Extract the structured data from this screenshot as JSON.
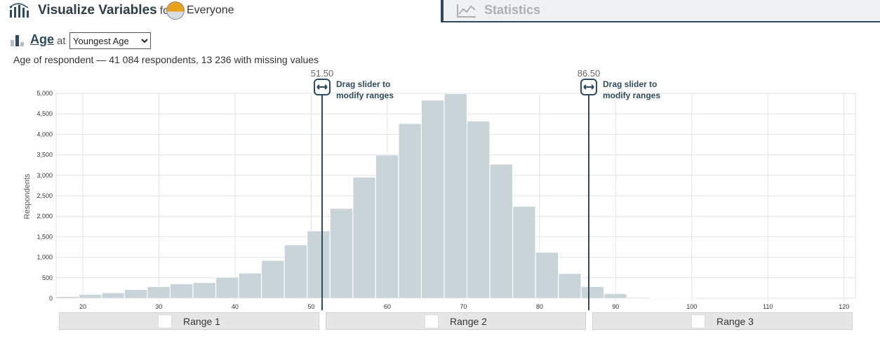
{
  "header": {
    "title": "Visualize Variables",
    "for_label": "for",
    "group": "Everyone"
  },
  "tabs": {
    "statistics": "Statistics"
  },
  "variable": {
    "name": "Age",
    "at_label": "at",
    "selected_option": "Youngest Age",
    "summary": "Age of respondent — 41 084 respondents, 13 236 with missing values"
  },
  "sliders": [
    {
      "value": "51.50",
      "hint_line1": "Drag slider to",
      "hint_line2": "modify ranges"
    },
    {
      "value": "86.50",
      "hint_line1": "Drag slider to",
      "hint_line2": "modify ranges"
    }
  ],
  "ranges": [
    "Range 1",
    "Range 2",
    "Range 3"
  ],
  "colors": {
    "bar": "#c8d4d7",
    "slider": "#2f4a5c",
    "grid": "#e2e2e2"
  },
  "chart_data": {
    "type": "bar",
    "ylabel": "Respondents",
    "xlim": [
      16.5,
      121.5
    ],
    "ylim": [
      0,
      5000
    ],
    "x_ticks": [
      20,
      30,
      40,
      50,
      60,
      70,
      80,
      90,
      100,
      110,
      120
    ],
    "y_ticks": [
      0,
      500,
      1000,
      1500,
      2000,
      2500,
      3000,
      3500,
      4000,
      4500,
      5000
    ],
    "y_tick_labels": [
      "0",
      "500",
      "1,000",
      "1,500",
      "2,000",
      "2,500",
      "3,000",
      "3,500",
      "4,000",
      "4,500",
      "5,000"
    ],
    "bin_width": 3,
    "bins_start": [
      16.5,
      19.5,
      22.5,
      25.5,
      28.5,
      31.5,
      34.5,
      37.5,
      40.5,
      43.5,
      46.5,
      49.5,
      52.5,
      55.5,
      58.5,
      61.5,
      64.5,
      67.5,
      70.5,
      73.5,
      76.5,
      79.5,
      82.5,
      85.5,
      88.5,
      91.5,
      94.5,
      97.5
    ],
    "values": [
      40,
      90,
      130,
      210,
      280,
      350,
      380,
      510,
      610,
      920,
      1300,
      1640,
      2190,
      2950,
      3490,
      4260,
      4830,
      4990,
      4320,
      3270,
      2240,
      1120,
      600,
      280,
      110,
      20,
      5,
      2
    ]
  }
}
